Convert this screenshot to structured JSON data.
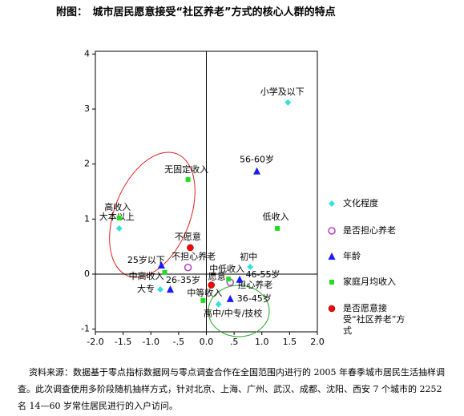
{
  "chart_data": {
    "type": "scatter",
    "title": "附图：　城市居民愿意接受“社区养老”方式的核心人群的特点",
    "note": "资料来源：数据基于零点指标数据网与零点调查合作在全国范围内进行的 2005 年春季城市居民生活抽样调查。此次调查使用多阶段随机抽样方式，针对北京、上海、广州、武汉、成都、沈阳、西安 7 个城市的 2252 名 14—60 岁常住居民进行的入户访问。",
    "xlim": [
      -2,
      2
    ],
    "ylim": [
      -1.05,
      4.05
    ],
    "xticks": [
      {
        "value": -2,
        "label": "-2.0"
      },
      {
        "value": -1.5,
        "label": "-1.5"
      },
      {
        "value": -1,
        "label": "-1.0"
      },
      {
        "value": -0.5,
        "label": "-.5"
      },
      {
        "value": 0,
        "label": "0.0"
      },
      {
        "value": 0.5,
        "label": ".5"
      },
      {
        "value": 1,
        "label": "1.0"
      },
      {
        "value": 1.5,
        "label": "1.5"
      },
      {
        "value": 2,
        "label": "2.0"
      }
    ],
    "yticks": [
      -1,
      0,
      1,
      2,
      3,
      4
    ],
    "series": [
      {
        "name": "文化程度",
        "color": "#33e0e0",
        "marker": "diamond",
        "labels": [
          "小学及以下",
          "大本以上",
          "初中",
          "大专",
          "高中/中专/技校"
        ],
        "x": [
          1.47,
          -1.57,
          0.79,
          -0.83,
          0.22
        ],
        "values": [
          3.12,
          0.83,
          0.13,
          -0.28,
          -0.55
        ]
      },
      {
        "name": "是否担心养老",
        "color": "#b040c0",
        "marker": "ring",
        "labels": [
          "不担心养老",
          "担心养老"
        ],
        "x": [
          -0.33,
          0.43
        ],
        "values": [
          0.12,
          -0.15
        ]
      },
      {
        "name": "年龄",
        "color": "#1a1aff",
        "marker": "triangle",
        "labels": [
          "56-60岁",
          "25岁以下",
          "26-35岁",
          "46-55岁",
          "36-45岁"
        ],
        "x": [
          0.91,
          -0.81,
          -0.65,
          0.6,
          0.43
        ],
        "values": [
          1.87,
          0.16,
          -0.28,
          -0.1,
          -0.45
        ]
      },
      {
        "name": "家庭月均收入",
        "color": "#22dd22",
        "marker": "square",
        "labels": [
          "无固定收入",
          "高收入",
          "低收入",
          "中高收入",
          "中低收入",
          "中等收入"
        ],
        "x": [
          -0.33,
          -1.57,
          1.28,
          -0.75,
          0.4,
          -0.06
        ],
        "values": [
          1.72,
          1.02,
          0.83,
          0.03,
          -0.09,
          -0.48
        ]
      },
      {
        "name": "是否愿意接受“社区养老”方式",
        "color": "#ff0000",
        "marker": "circle",
        "labels": [
          "不愿意",
          "愿意"
        ],
        "x": [
          -0.29,
          0.09
        ],
        "values": [
          0.48,
          -0.2
        ]
      }
    ]
  }
}
